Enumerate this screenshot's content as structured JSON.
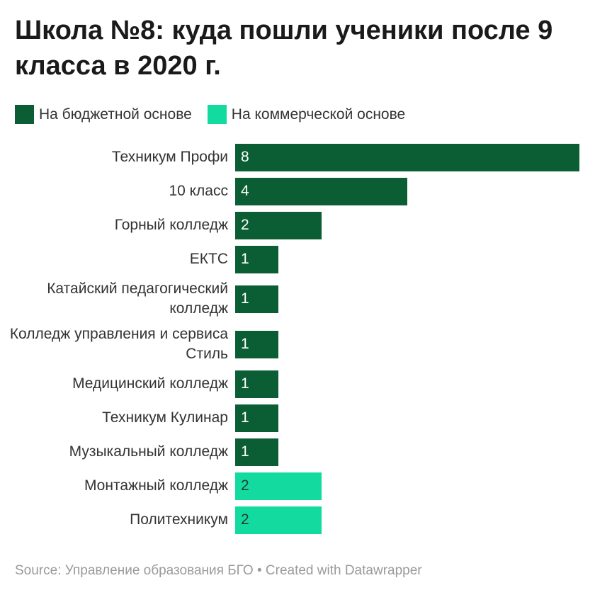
{
  "title": "Школа №8: куда пошли ученики после 9 класса в 2020 г.",
  "legend": [
    {
      "label": "На бюджетной основе",
      "color": "#0b5e34"
    },
    {
      "label": "На коммерческой основе",
      "color": "#13dba0"
    }
  ],
  "source": "Source: Управление образования БГО • Created with Datawrapper",
  "chart_data": {
    "type": "bar",
    "orientation": "horizontal",
    "categories": [
      "Техникум Профи",
      "10 класс",
      "Горный колледж",
      "ЕКТС",
      "Катайский педагогический колледж",
      "Колледж управления и сервиса Стиль",
      "Медицинский колледж",
      "Техникум Кулинар",
      "Музыкальный колледж",
      "Монтажный колледж",
      "Политехникум"
    ],
    "values": [
      8,
      4,
      2,
      1,
      1,
      1,
      1,
      1,
      1,
      2,
      2
    ],
    "series_index": [
      0,
      0,
      0,
      0,
      0,
      0,
      0,
      0,
      0,
      1,
      1
    ],
    "xlim": [
      0,
      8
    ],
    "grid": false,
    "legend_position": "top-left"
  }
}
